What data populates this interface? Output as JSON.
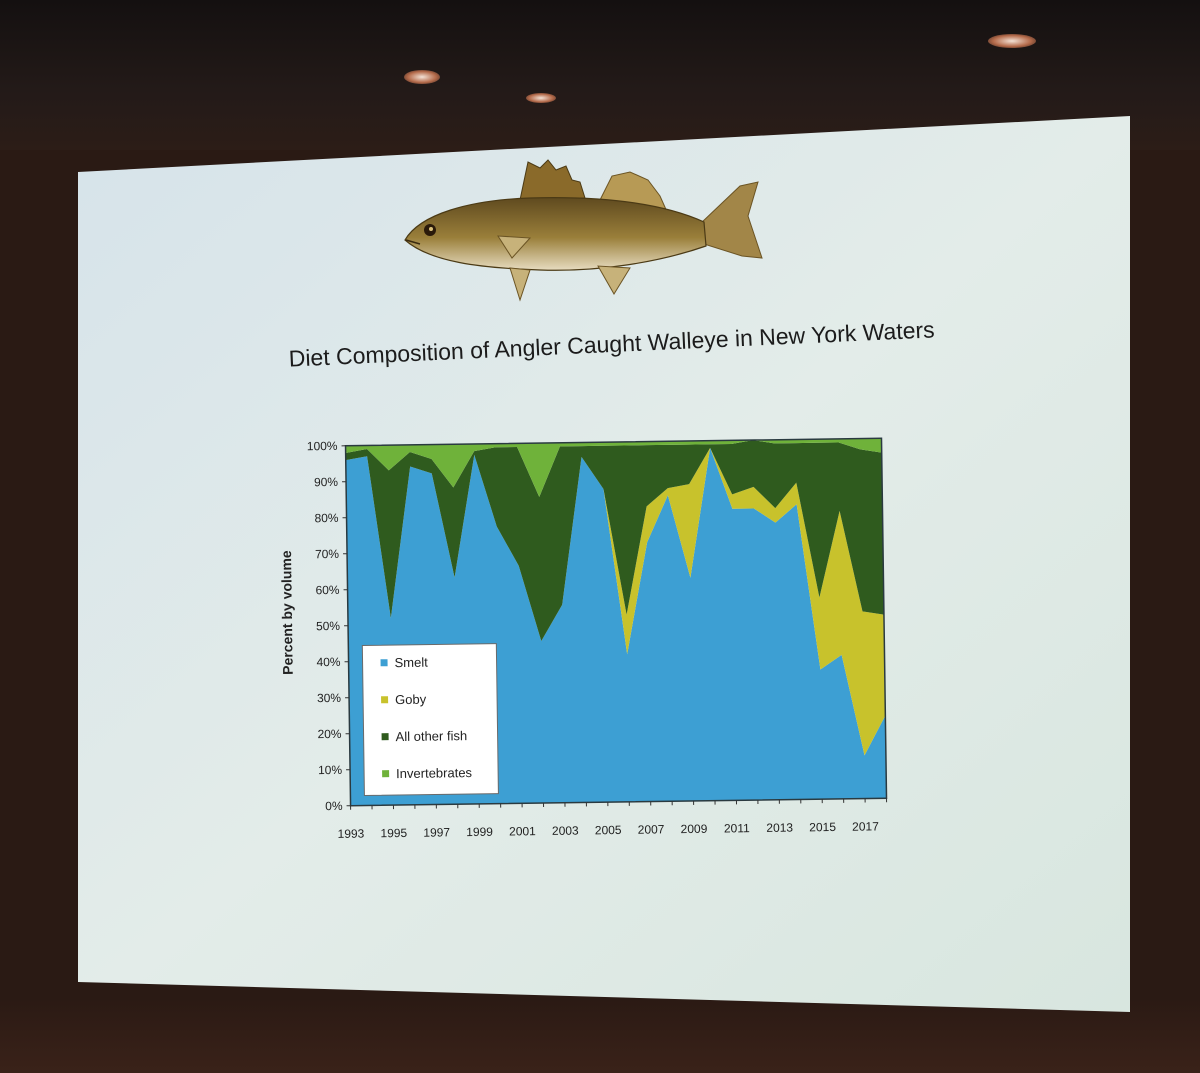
{
  "slide": {
    "title": "Diet Composition of Angler Caught Walleye in New York Waters"
  },
  "chart_data": {
    "type": "area",
    "stacked": true,
    "ylabel": "Percent by volume",
    "xlabel": "",
    "x": [
      1993,
      1994,
      1995,
      1996,
      1997,
      1998,
      1999,
      2000,
      2001,
      2002,
      2003,
      2004,
      2005,
      2006,
      2007,
      2008,
      2009,
      2010,
      2011,
      2012,
      2013,
      2014,
      2015,
      2016,
      2017,
      2018
    ],
    "xtick_labels": [
      "1993",
      "1995",
      "1997",
      "1999",
      "2001",
      "2003",
      "2005",
      "2007",
      "2009",
      "2011",
      "2013",
      "2015",
      "2017"
    ],
    "ytick_labels": [
      "0%",
      "10%",
      "20%",
      "30%",
      "40%",
      "50%",
      "60%",
      "70%",
      "80%",
      "90%",
      "100%"
    ],
    "ylim": [
      0,
      100
    ],
    "grid": false,
    "legend_position": "lower-left",
    "series": [
      {
        "name": "Smelt",
        "color": "#3d9fd3",
        "values": [
          96,
          97,
          52,
          94,
          92,
          63,
          97,
          77,
          66,
          45,
          55,
          96,
          87,
          41,
          72,
          85,
          62,
          98,
          81,
          81,
          77,
          82,
          36,
          40,
          12,
          23
        ]
      },
      {
        "name": "Goby",
        "color": "#c8c22c",
        "values": [
          0,
          0,
          0,
          0,
          0,
          0,
          0,
          0,
          0,
          0,
          0,
          0,
          0,
          11,
          10,
          2,
          26,
          0,
          4,
          6,
          4,
          6,
          20,
          40,
          40,
          28
        ]
      },
      {
        "name": "All other fish",
        "color": "#2f5b1e",
        "values": [
          2,
          2,
          41,
          4,
          4,
          25,
          1,
          22,
          33,
          40,
          44,
          3,
          12,
          47,
          17,
          12,
          11,
          1,
          14,
          13,
          18,
          11,
          43,
          19,
          45,
          45
        ]
      },
      {
        "name": "Invertebrates",
        "color": "#6fb23a",
        "values": [
          2,
          1,
          7,
          2,
          4,
          12,
          2,
          1,
          1,
          15,
          1,
          1,
          1,
          1,
          1,
          1,
          1,
          1,
          1,
          0,
          1,
          1,
          1,
          1,
          3,
          4
        ]
      }
    ]
  }
}
